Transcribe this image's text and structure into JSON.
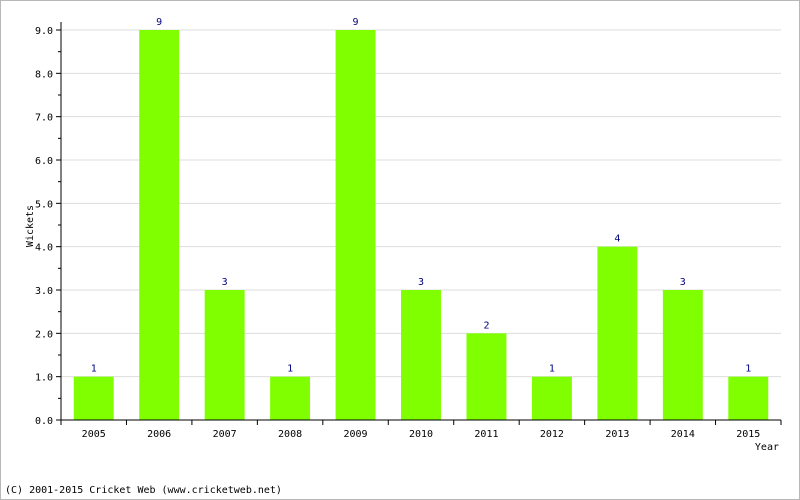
{
  "chart_data": {
    "type": "bar",
    "categories": [
      "2005",
      "2006",
      "2007",
      "2008",
      "2009",
      "2010",
      "2011",
      "2012",
      "2013",
      "2014",
      "2015"
    ],
    "values": [
      1,
      9,
      3,
      1,
      9,
      3,
      2,
      1,
      4,
      3,
      1
    ],
    "data_labels": [
      "1",
      "9",
      "3",
      "1",
      "9",
      "3",
      "2",
      "1",
      "4",
      "3",
      "1"
    ],
    "xlabel": "Year",
    "ylabel": "Wickets",
    "ylim": [
      0,
      9
    ],
    "yticks": [
      "0.0",
      "1.0",
      "2.0",
      "3.0",
      "4.0",
      "5.0",
      "6.0",
      "7.0",
      "8.0",
      "9.0"
    ],
    "grid": true,
    "bar_color": "#80ff00"
  },
  "footer": {
    "copyright": "(C) 2001-2015 Cricket Web (www.cricketweb.net)"
  }
}
